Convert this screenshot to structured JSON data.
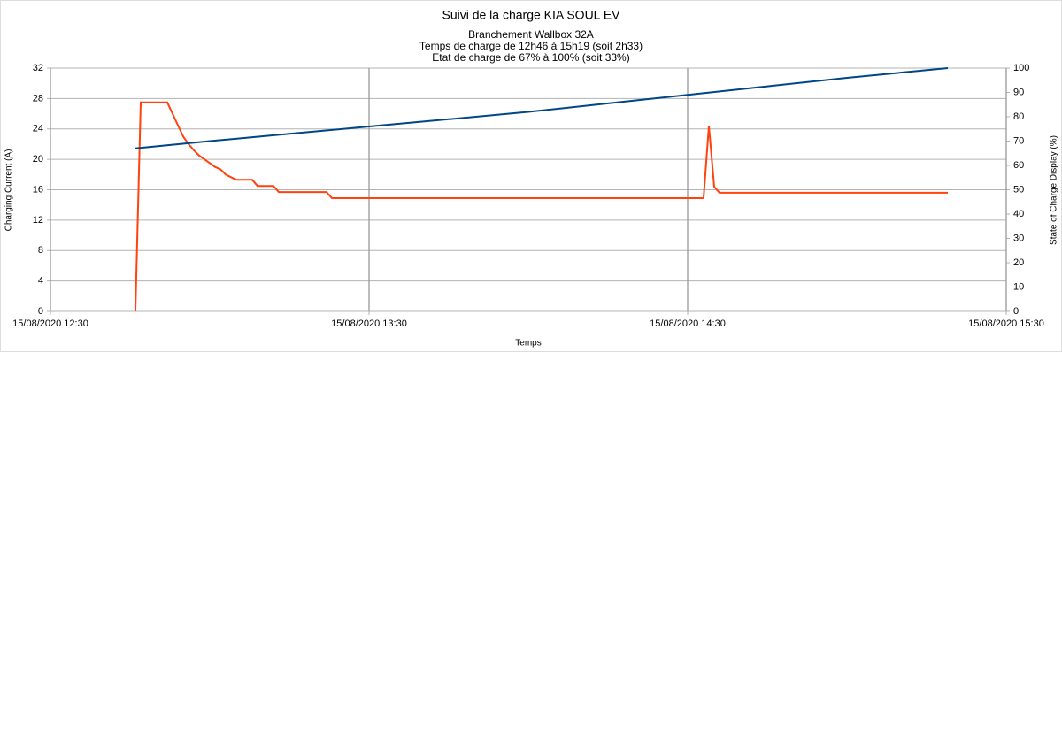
{
  "chart_data": {
    "type": "line",
    "title": "Suivi de la charge KIA SOUL EV",
    "subtitle": [
      "Branchement Wallbox 32A",
      "Temps de charge de 12h46 à 15h19 (soit 2h33)",
      "Etat de charge de 67% à 100% (soit 33%)"
    ],
    "x_label": "Temps",
    "y_label": "Charging Current (A)",
    "y2_label": "State of Charge Display (%)",
    "xlim": [
      "15/08/2020 12:30",
      "15/08/2020 15:30"
    ],
    "xticks": [
      "15/08/2020 12:30",
      "15/08/2020 13:30",
      "15/08/2020 14:30",
      "15/08/2020 15:30"
    ],
    "ylim": [
      0,
      32
    ],
    "yticks": [
      0,
      4,
      8,
      12,
      16,
      20,
      24,
      28,
      32
    ],
    "y2lim": [
      0,
      100
    ],
    "y2ticks": [
      0,
      10,
      20,
      30,
      40,
      50,
      60,
      70,
      80,
      90,
      100
    ],
    "grid": true,
    "series": [
      {
        "name": "Charging Current",
        "color": "#ff420e",
        "x": [
          "15/08/2020 12:46",
          "15/08/2020 12:47",
          "15/08/2020 12:52",
          "15/08/2020 12:53",
          "15/08/2020 12:54",
          "15/08/2020 12:55",
          "15/08/2020 12:56",
          "15/08/2020 12:57",
          "15/08/2020 12:58",
          "15/08/2020 12:59",
          "15/08/2020 13:00",
          "15/08/2020 13:01",
          "15/08/2020 13:02",
          "15/08/2020 13:03",
          "15/08/2020 13:05",
          "15/08/2020 13:08",
          "15/08/2020 13:09",
          "15/08/2020 13:12",
          "15/08/2020 13:13",
          "15/08/2020 13:22",
          "15/08/2020 13:23",
          "15/08/2020 14:33",
          "15/08/2020 14:34",
          "15/08/2020 14:35",
          "15/08/2020 14:36",
          "15/08/2020 15:19"
        ],
        "values": [
          0,
          27.5,
          27.5,
          26,
          24.5,
          23,
          22,
          21.2,
          20.5,
          20,
          19.5,
          19,
          18.7,
          18,
          17.3,
          17.3,
          16.5,
          16.5,
          15.7,
          15.7,
          14.9,
          14.9,
          24.4,
          16.4,
          15.6,
          15.6
        ]
      },
      {
        "name": "State of Charge",
        "color": "#004586",
        "axis": "y2",
        "x": [
          "15/08/2020 12:46",
          "15/08/2020 13:00",
          "15/08/2020 13:15",
          "15/08/2020 13:30",
          "15/08/2020 13:45",
          "15/08/2020 14:00",
          "15/08/2020 14:15",
          "15/08/2020 14:30",
          "15/08/2020 14:45",
          "15/08/2020 15:00",
          "15/08/2020 15:19"
        ],
        "values": [
          67,
          70,
          73,
          76,
          79,
          82,
          85.5,
          89,
          92.5,
          96,
          100
        ]
      }
    ]
  }
}
